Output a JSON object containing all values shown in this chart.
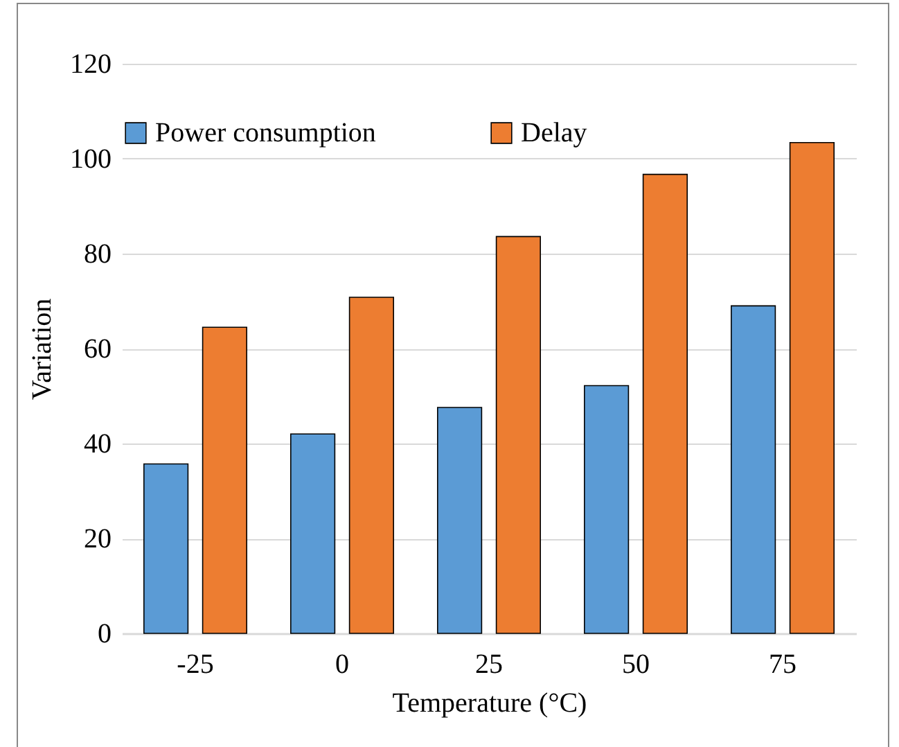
{
  "chart_data": {
    "type": "bar",
    "xlabel": "Temperature (°C)",
    "ylabel": "Variation",
    "categories": [
      "-25",
      "0",
      "25",
      "50",
      "75"
    ],
    "series": [
      {
        "name": "Power consumption",
        "color": "#5b9bd5",
        "values": [
          35.7,
          42.0,
          47.6,
          52.2,
          69.0
        ]
      },
      {
        "name": "Delay",
        "color": "#ed7d31",
        "values": [
          64.5,
          70.8,
          83.6,
          96.7,
          103.4
        ]
      }
    ],
    "ylim": [
      0,
      120
    ],
    "yticks": [
      0,
      20,
      40,
      60,
      80,
      100,
      120
    ],
    "grid": "y",
    "legend": "top"
  }
}
